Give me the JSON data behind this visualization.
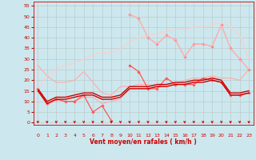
{
  "xlabel": "Vent moyen/en rafales ( km/h )",
  "bg_color": "#cce8ee",
  "grid_color": "#bbcccc",
  "x_ticks": [
    0,
    1,
    2,
    3,
    4,
    5,
    6,
    7,
    8,
    9,
    10,
    11,
    12,
    13,
    14,
    15,
    16,
    17,
    18,
    19,
    20,
    21,
    22,
    23
  ],
  "ylim": [
    -1,
    57
  ],
  "y_ticks": [
    0,
    5,
    10,
    15,
    20,
    25,
    30,
    35,
    40,
    45,
    50,
    55
  ],
  "series": [
    {
      "color": "#ffaaaa",
      "lw": 0.8,
      "marker": null,
      "y": [
        27,
        22,
        19,
        19,
        20,
        24,
        19,
        14,
        13,
        17,
        17,
        18,
        18,
        17,
        18,
        18,
        20,
        21,
        21,
        22,
        21,
        21,
        20,
        25
      ]
    },
    {
      "color": "#ffaaaa",
      "lw": 0.8,
      "marker": null,
      "y": [
        16,
        8,
        11,
        10,
        10,
        12,
        12,
        9,
        10,
        11,
        16,
        16,
        16,
        17,
        18,
        18,
        18,
        19,
        20,
        21,
        20,
        13,
        13,
        14
      ]
    },
    {
      "color": "#ff5555",
      "lw": 0.9,
      "marker": "D",
      "ms": 1.8,
      "y": [
        16,
        9,
        11,
        10,
        10,
        13,
        5,
        8,
        1,
        null,
        27,
        24,
        16,
        16,
        21,
        18,
        18,
        18,
        21,
        20,
        19,
        13,
        13,
        14
      ]
    },
    {
      "color": "#cc0000",
      "lw": 1.0,
      "marker": null,
      "y": [
        15,
        9,
        11,
        11,
        12,
        13,
        13,
        11,
        11,
        12,
        16,
        16,
        16,
        17,
        17,
        18,
        18,
        19,
        19,
        20,
        19,
        13,
        13,
        14
      ]
    },
    {
      "color": "#cc0000",
      "lw": 1.0,
      "marker": null,
      "y": [
        16,
        10,
        12,
        12,
        13,
        14,
        14,
        12,
        12,
        13,
        17,
        17,
        17,
        18,
        18,
        19,
        19,
        20,
        20,
        21,
        20,
        14,
        14,
        15
      ]
    },
    {
      "color": "#ff7777",
      "lw": 0.8,
      "marker": "D",
      "ms": 1.8,
      "y": [
        null,
        null,
        null,
        null,
        null,
        null,
        null,
        null,
        null,
        null,
        51,
        49,
        40,
        37,
        41,
        39,
        31,
        37,
        37,
        36,
        46,
        35,
        30,
        25
      ]
    },
    {
      "color": "#ffbbbb",
      "lw": 0.8,
      "marker": null,
      "y": [
        null,
        null,
        null,
        null,
        null,
        null,
        null,
        null,
        null,
        null,
        51,
        49,
        40,
        37,
        41,
        39,
        31,
        37,
        37,
        36,
        46,
        35,
        30,
        25
      ]
    },
    {
      "color": "#ffcccc",
      "lw": 0.8,
      "marker": null,
      "y": [
        16,
        22,
        25,
        27,
        28,
        30,
        32,
        33,
        33,
        35,
        38,
        40,
        41,
        42,
        43,
        44,
        44,
        45,
        45,
        46,
        47,
        45,
        41,
        30
      ]
    }
  ],
  "arrow_color": "#cc0000"
}
